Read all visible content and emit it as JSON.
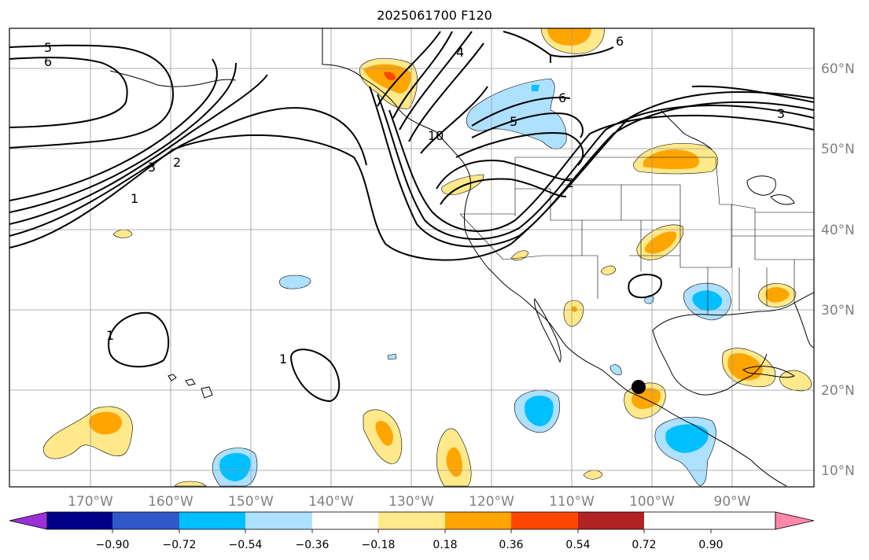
{
  "title": "2025061700 F120",
  "lat_labels": [
    "60°N",
    "50°N",
    "40°N",
    "30°N",
    "20°N",
    "10°N"
  ],
  "lon_labels": [
    "170°W",
    "160°W",
    "150°W",
    "140°W",
    "130°W",
    "120°W",
    "110°W",
    "100°W",
    "90°W"
  ],
  "contour_labels": [
    "5",
    "6",
    "3",
    "2",
    "1",
    "1",
    "1",
    "4",
    "6",
    "5",
    "6",
    "3",
    "2",
    "10"
  ],
  "colorbar": {
    "tick_labels": [
      "−0.90",
      "−0.72",
      "−0.54",
      "−0.36",
      "−0.18",
      "0.18",
      "0.36",
      "0.54",
      "0.72",
      "0.90"
    ],
    "colors": [
      "#9b30d9",
      "#000088",
      "#3058c8",
      "#00bfff",
      "#aee0ff",
      "#ffffff",
      "#ffe98a",
      "#ffa500",
      "#ff4500",
      "#b22222",
      "#ff88aa"
    ]
  },
  "colors": {
    "positive_light": "#ffe98a",
    "positive": "#ffa500",
    "positive_strong": "#ff4500",
    "negative_light": "#aee0ff",
    "negative": "#00bfff",
    "grid": "#999999",
    "tick_label": "#808080"
  },
  "marker": {
    "lat": 20.5,
    "lon": -101.5
  }
}
